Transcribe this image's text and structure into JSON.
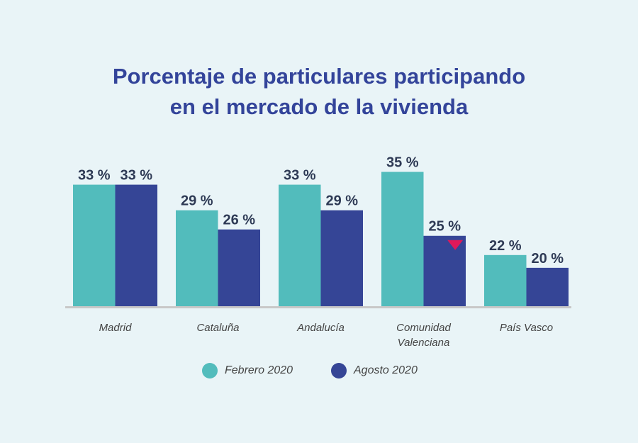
{
  "chart_data": {
    "type": "bar",
    "title": [
      "Porcentaje de particulares participando",
      "en el mercado de la vivienda"
    ],
    "categories": [
      [
        "Madrid"
      ],
      [
        "Cataluña"
      ],
      [
        "Andalucía"
      ],
      [
        "Comunidad",
        "Valenciana"
      ],
      [
        "País Vasco"
      ]
    ],
    "series": [
      {
        "name": "Febrero 2020",
        "color": "#52bcbc",
        "values": [
          33,
          29,
          33,
          35,
          22
        ],
        "labels": [
          "33 %",
          "29 %",
          "33 %",
          "35 %",
          "22 %"
        ]
      },
      {
        "name": "Agosto 2020",
        "color": "#354596",
        "values": [
          33,
          26,
          29,
          25,
          20
        ],
        "labels": [
          "33 %",
          "26 %",
          "29 %",
          "25 %",
          "20 %"
        ]
      }
    ],
    "ylim": [
      14,
      35.5
    ],
    "grid": false,
    "legend": "bottom-center",
    "annotations": [
      {
        "type": "down-triangle",
        "category": "Comunidad Valenciana",
        "series": "Agosto 2020",
        "color": "#e0185a"
      }
    ]
  }
}
